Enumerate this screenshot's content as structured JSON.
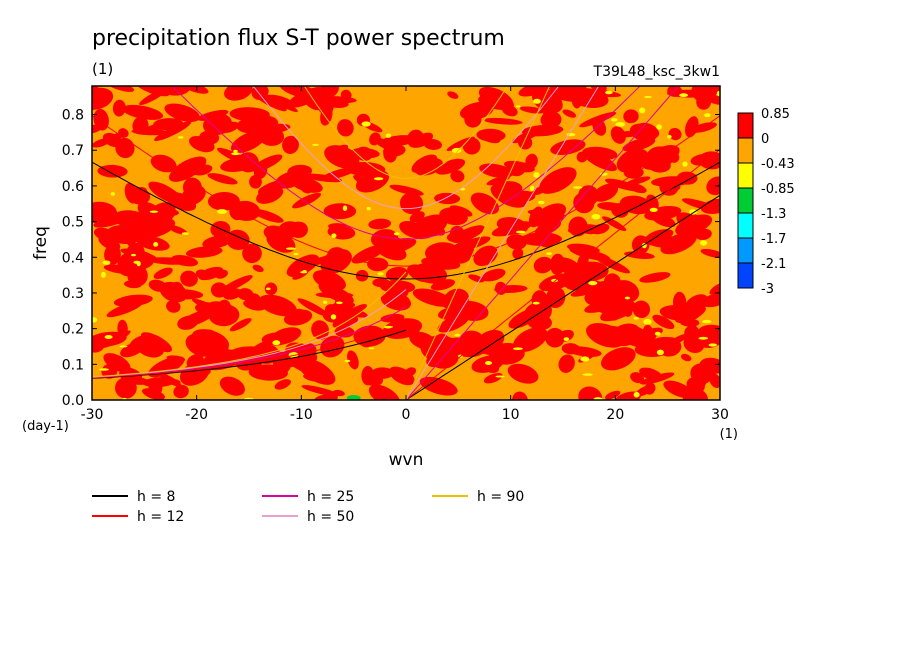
{
  "chart_data": {
    "type": "heatmap",
    "title": "precipitation flux S-T power spectrum",
    "subtitle_left": "(1)",
    "subtitle_right": "T39L48_ksc_3kw1",
    "xlabel": "wvn",
    "ylabel": "freq",
    "x_unit": "(1)",
    "y_unit": "(day-1)",
    "xlim": [
      -30,
      30
    ],
    "ylim": [
      0,
      0.88
    ],
    "xticks": [
      -30,
      -20,
      -10,
      0,
      10,
      20,
      30
    ],
    "xtick_labels": [
      "-30",
      "-20",
      "-10",
      "0",
      "10",
      "20",
      "30"
    ],
    "yticks": [
      0,
      0.1,
      0.2,
      0.3,
      0.4,
      0.5,
      0.6,
      0.7,
      0.8
    ],
    "ytick_labels": [
      "0.0",
      "0.1",
      "0.2",
      "0.3",
      "0.4",
      "0.5",
      "0.6",
      "0.7",
      "0.8"
    ],
    "colorbar": {
      "labels": [
        "0.85",
        "0",
        "-0.43",
        "-0.85",
        "-1.3",
        "-1.7",
        "-2.1",
        "-3"
      ],
      "colors": [
        "#ff0000",
        "#ffa500",
        "#ffff00",
        "#00cc33",
        "#00ffff",
        "#0099ff",
        "#0044ff"
      ]
    },
    "field_colors": {
      "high": "#ff0000",
      "mid": "#ffa500",
      "low": "#ffff00",
      "lowest": "#00cc33"
    },
    "series": [
      {
        "name": "h =  8",
        "color": "#000000",
        "equivalent_depth": 8
      },
      {
        "name": "h = 12",
        "color": "#ff0000",
        "equivalent_depth": 12
      },
      {
        "name": "h = 25",
        "color": "#e000a0",
        "equivalent_depth": 25
      },
      {
        "name": "h = 50",
        "color": "#e8a0d0",
        "equivalent_depth": 50
      },
      {
        "name": "h = 90",
        "color": "#f0c000",
        "equivalent_depth": 90
      }
    ]
  }
}
